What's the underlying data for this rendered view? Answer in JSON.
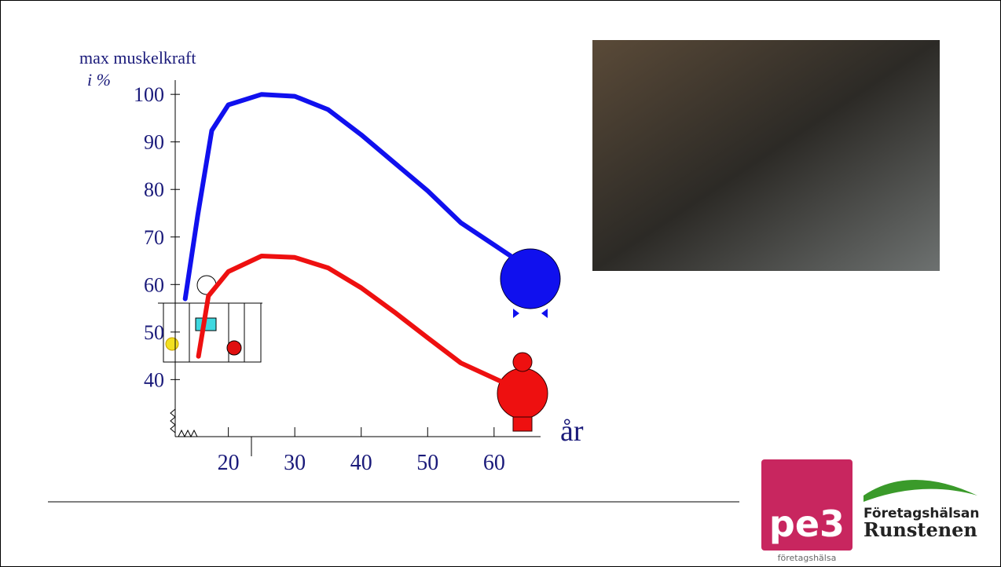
{
  "chart_data": {
    "type": "line",
    "y_label_lines": [
      "max muskelkraft",
      "i %"
    ],
    "x_label": "år",
    "xlim": [
      12,
      67
    ],
    "xticks": [
      20,
      30,
      40,
      50,
      60
    ],
    "ylim": [
      28,
      103
    ],
    "yticks": [
      40,
      50,
      60,
      70,
      80,
      90,
      100
    ],
    "series": [
      {
        "color": "#1010ee",
        "x": [
          13.5,
          15.4,
          17.5,
          20,
          25,
          30,
          35,
          40,
          45,
          50,
          55,
          62.5
        ],
        "values": [
          57,
          74.6,
          92.4,
          97.8,
          100,
          99.6,
          96.8,
          91.5,
          85.6,
          79.7,
          73,
          66
        ]
      },
      {
        "color": "#ee1010",
        "x": [
          15.5,
          17,
          20,
          25,
          30,
          35,
          40,
          45,
          50,
          55,
          62
        ],
        "values": [
          44.9,
          57.6,
          62.7,
          66,
          65.7,
          63.5,
          59.3,
          54.2,
          48.8,
          43.5,
          39
        ]
      }
    ]
  },
  "logos": {
    "pe3": "pe3",
    "pe3_caption": "företagshälsa",
    "partner_line1": "Företagshälsan",
    "partner_line2": "Runstenen"
  }
}
